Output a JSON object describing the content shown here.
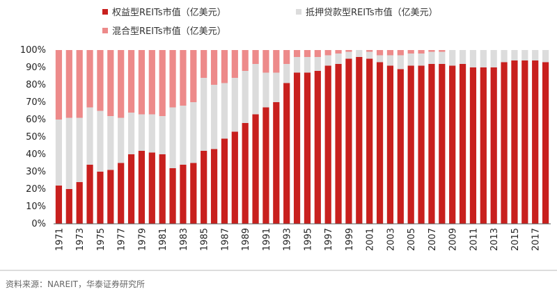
{
  "chart_data": {
    "type": "bar",
    "stacked": true,
    "title": "",
    "xlabel": "",
    "ylabel": "",
    "ylim": [
      0,
      100
    ],
    "y_tick_labels": [
      "0%",
      "10%",
      "20%",
      "30%",
      "40%",
      "50%",
      "60%",
      "70%",
      "80%",
      "90%",
      "100%"
    ],
    "legend_position": "top-left",
    "grid": false,
    "categories": [
      "1971",
      "1972",
      "1973",
      "1974",
      "1975",
      "1976",
      "1977",
      "1978",
      "1979",
      "1980",
      "1981",
      "1982",
      "1983",
      "1984",
      "1985",
      "1986",
      "1987",
      "1988",
      "1989",
      "1990",
      "1991",
      "1992",
      "1993",
      "1994",
      "1995",
      "1996",
      "1997",
      "1998",
      "1999",
      "2000",
      "2001",
      "2002",
      "2003",
      "2004",
      "2005",
      "2006",
      "2007",
      "2008",
      "2009",
      "2010",
      "2011",
      "2012",
      "2013",
      "2014",
      "2015",
      "2016",
      "2017",
      "2018"
    ],
    "series": [
      {
        "name": "权益型REITs市值（亿美元）",
        "color": "#c8201e",
        "values": [
          22,
          20,
          24,
          34,
          30,
          31,
          35,
          40,
          42,
          41,
          40,
          32,
          34,
          35,
          42,
          43,
          49,
          53,
          58,
          63,
          67,
          70,
          81,
          87,
          87,
          88,
          91,
          92,
          95,
          96,
          95,
          93,
          91,
          89,
          91,
          91,
          92,
          92,
          91,
          92,
          90,
          90,
          90,
          93,
          94,
          94,
          94,
          93
        ]
      },
      {
        "name": "抵押贷款型REITs市值（亿美元）",
        "color": "#dcdcdc",
        "values": [
          38,
          41,
          37,
          33,
          35,
          31,
          26,
          24,
          21,
          22,
          22,
          35,
          34,
          35,
          42,
          37,
          32,
          31,
          30,
          29,
          20,
          17,
          11,
          9,
          9,
          8,
          6,
          6,
          4,
          4,
          4,
          4,
          6,
          8,
          7,
          7,
          7,
          7,
          9,
          8,
          10,
          10,
          10,
          7,
          6,
          6,
          6,
          7
        ]
      },
      {
        "name": "混合型REITs市值（亿美元）",
        "color": "#ed8a8a",
        "values": [
          40,
          39,
          39,
          33,
          35,
          38,
          39,
          36,
          37,
          37,
          38,
          33,
          32,
          30,
          16,
          20,
          19,
          16,
          12,
          8,
          13,
          13,
          8,
          4,
          4,
          4,
          3,
          2,
          1,
          0,
          1,
          3,
          3,
          3,
          2,
          2,
          1,
          1,
          0,
          0,
          0,
          0,
          0,
          0,
          0,
          0,
          0,
          0
        ]
      }
    ],
    "x_tick_labels": [
      "1971",
      "1973",
      "1975",
      "1977",
      "1979",
      "1981",
      "1983",
      "1985",
      "1987",
      "1989",
      "1991",
      "1993",
      "1995",
      "1997",
      "1999",
      "2001",
      "2003",
      "2005",
      "2007",
      "2009",
      "2011",
      "2013",
      "2015",
      "2017"
    ]
  },
  "source": "资料来源：NAREIT，华泰证券研究所"
}
